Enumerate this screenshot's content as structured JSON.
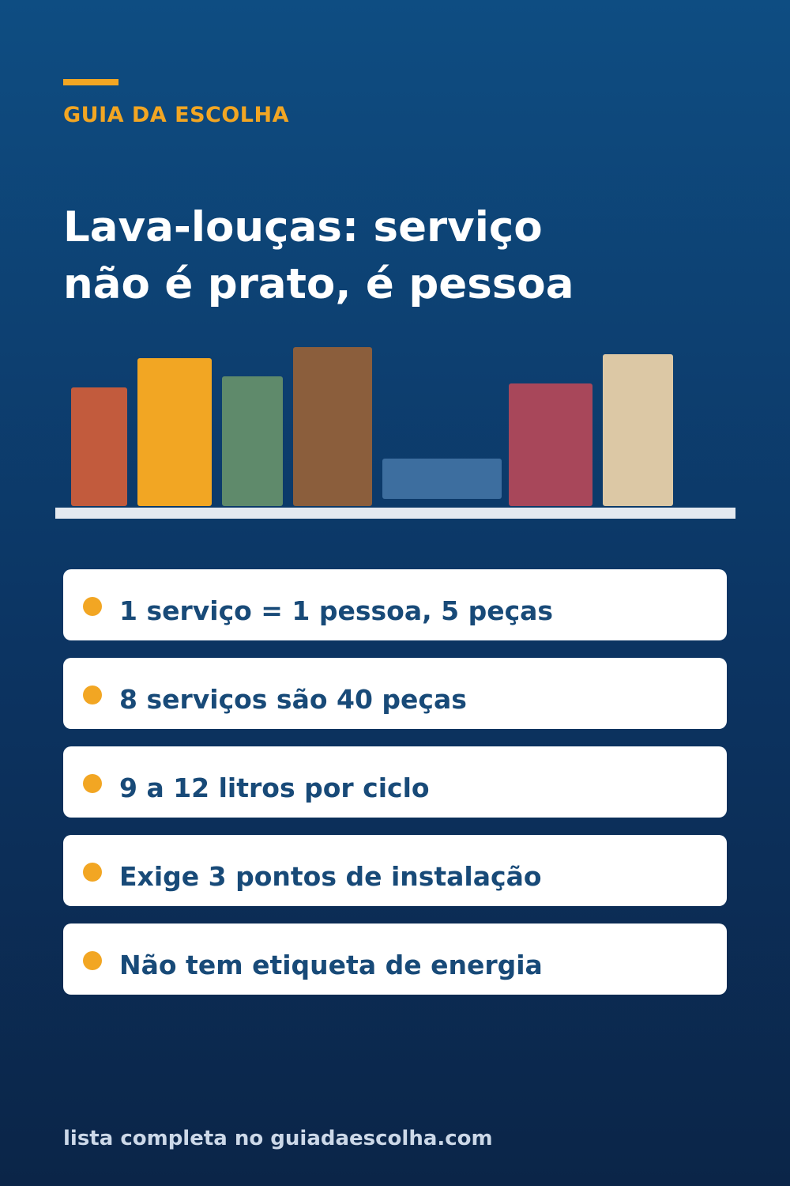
{
  "brand": {
    "name": "GUIA DA ESCOLHA"
  },
  "title": {
    "line1": "Lava-louças: serviço",
    "line2": "não é prato, é pessoa"
  },
  "illustration": {
    "colors": {
      "terracotta": "#c25b3d",
      "amber": "#f2a623",
      "sage": "#5f8a6b",
      "walnut": "#8b5e3c",
      "steel-blue": "#3d6e9f",
      "raspberry": "#a8475a",
      "sand": "#dcc8a5",
      "shelf": "#e4e9f0"
    }
  },
  "facts": [
    {
      "text": "1 serviço = 1 pessoa, 5 peças"
    },
    {
      "text": "8 serviços são 40 peças"
    },
    {
      "text": "9 a 12 litros por ciclo"
    },
    {
      "text": "Exige 3 pontos de instalação"
    },
    {
      "text": "Não tem etiqueta de energia"
    }
  ],
  "footer": {
    "text": "lista completa no guiadaescolha.com"
  }
}
